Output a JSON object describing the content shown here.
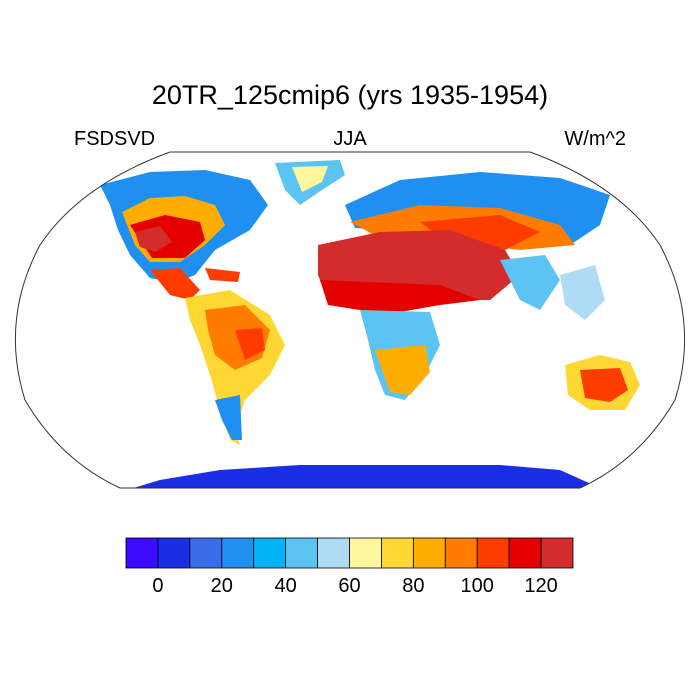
{
  "title": "20TR_125cmip6 (yrs 1935-1954)",
  "left_label": "FSDSVD",
  "center_label": "JJA",
  "right_label": "W/m^2",
  "colorbar": {
    "colors": [
      "#3b0cff",
      "#1a2ee6",
      "#3c6de8",
      "#1f8ff2",
      "#00b4f5",
      "#5cc4f2",
      "#aedcf4",
      "#fff69e",
      "#ffd733",
      "#ffad00",
      "#ff7c00",
      "#ff3c00",
      "#e50000",
      "#d42c2c"
    ],
    "tick_values": [
      "0",
      "20",
      "40",
      "60",
      "80",
      "100",
      "120"
    ]
  },
  "map": {
    "projection": "Robinson",
    "land_missing_color": "#ffffff",
    "ocean_color": "#ffffff"
  }
}
